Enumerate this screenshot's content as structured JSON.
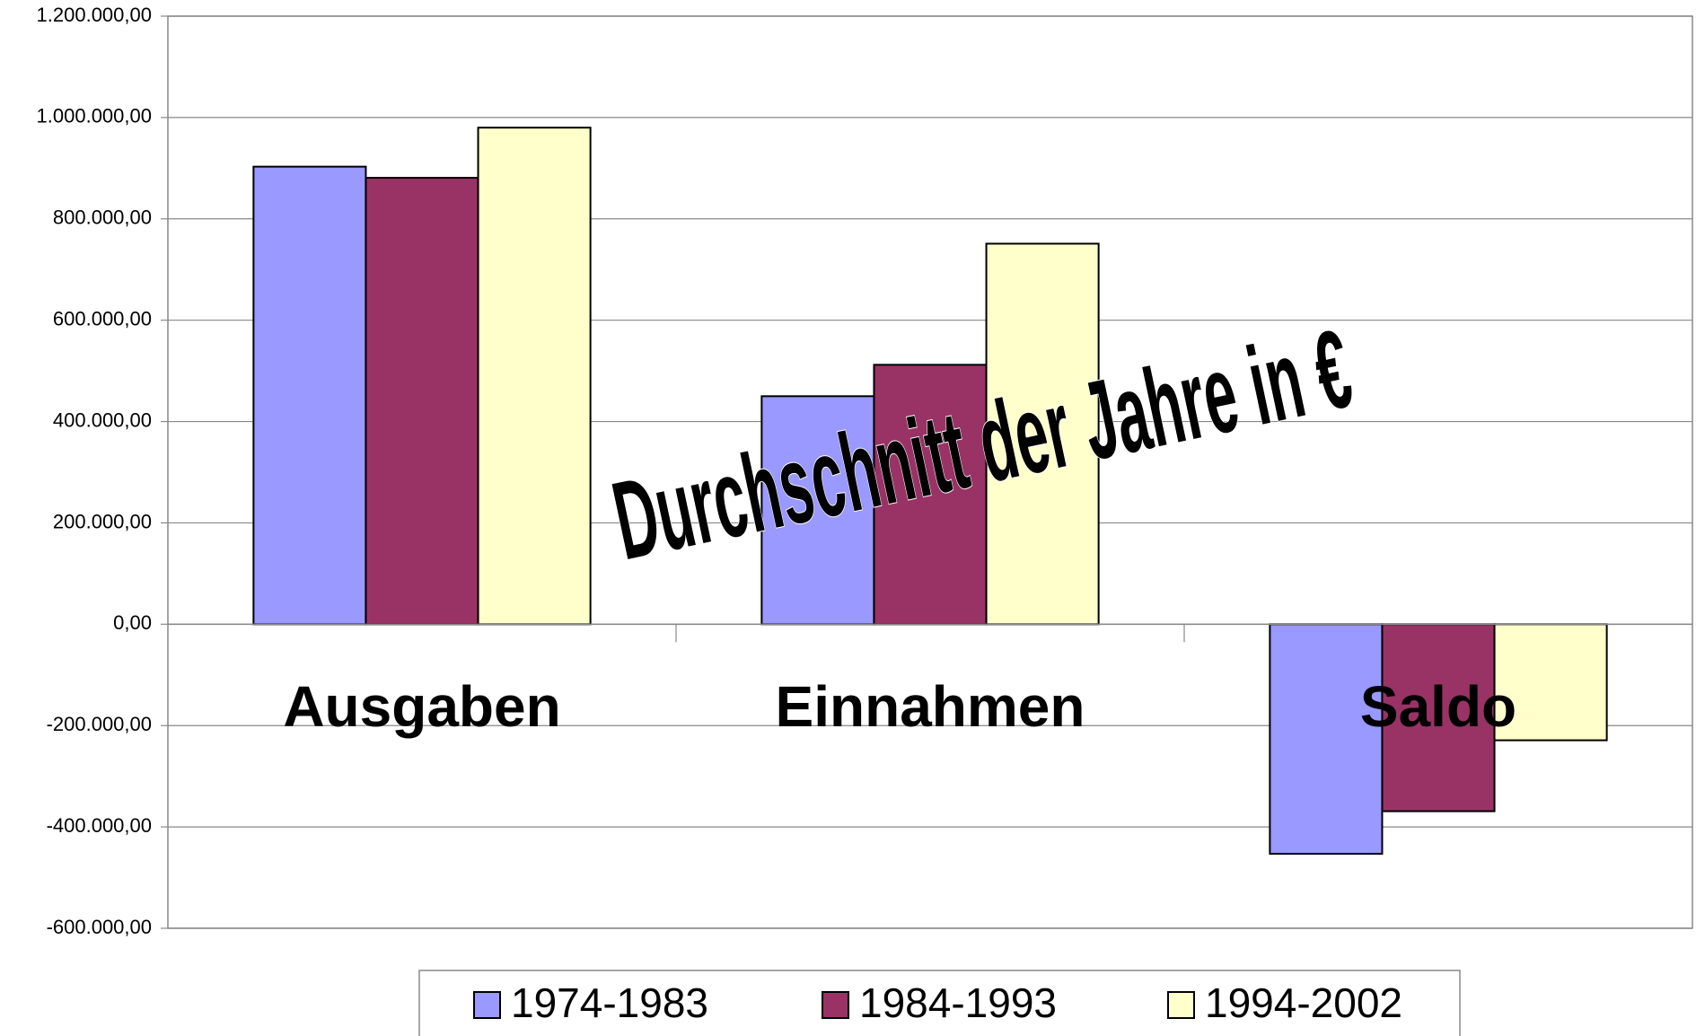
{
  "chart_data": {
    "type": "bar",
    "title": "Durchschnitt der Jahre in €",
    "categories": [
      "Ausgaben",
      "Einnahmen",
      "Saldo"
    ],
    "series": [
      {
        "name": "1974-1983",
        "color": "#9999ff",
        "values": [
          903000,
          450000,
          -453000
        ]
      },
      {
        "name": "1984-1993",
        "color": "#993366",
        "values": [
          881000,
          512000,
          -369000
        ]
      },
      {
        "name": "1994-2002",
        "color": "#ffffcc",
        "values": [
          980000,
          751000,
          -229000
        ]
      }
    ],
    "ylim": [
      -600000,
      1200000
    ],
    "yticks": [
      {
        "value": -600000,
        "label": "-600.000,00"
      },
      {
        "value": -400000,
        "label": "-400.000,00"
      },
      {
        "value": -200000,
        "label": "-200.000,00"
      },
      {
        "value": 0,
        "label": "0,00"
      },
      {
        "value": 200000,
        "label": "200.000,00"
      },
      {
        "value": 400000,
        "label": "400.000,00"
      },
      {
        "value": 600000,
        "label": "600.000,00"
      },
      {
        "value": 800000,
        "label": "800.000,00"
      },
      {
        "value": 1000000,
        "label": "1.000.000,00"
      },
      {
        "value": 1200000,
        "label": "1.200.000,00"
      }
    ],
    "grid": true,
    "legend": "bottom"
  }
}
